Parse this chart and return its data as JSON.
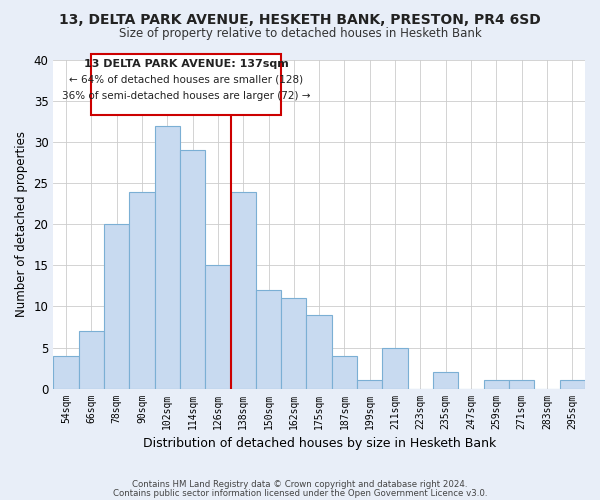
{
  "title1": "13, DELTA PARK AVENUE, HESKETH BANK, PRESTON, PR4 6SD",
  "title2": "Size of property relative to detached houses in Hesketh Bank",
  "xlabel": "Distribution of detached houses by size in Hesketh Bank",
  "ylabel": "Number of detached properties",
  "bin_labels": [
    "54sqm",
    "66sqm",
    "78sqm",
    "90sqm",
    "102sqm",
    "114sqm",
    "126sqm",
    "138sqm",
    "150sqm",
    "162sqm",
    "175sqm",
    "187sqm",
    "199sqm",
    "211sqm",
    "223sqm",
    "235sqm",
    "247sqm",
    "259sqm",
    "271sqm",
    "283sqm",
    "295sqm"
  ],
  "bar_heights": [
    4,
    7,
    20,
    24,
    32,
    29,
    15,
    24,
    12,
    11,
    9,
    4,
    1,
    5,
    0,
    2,
    0,
    1,
    1,
    0,
    1
  ],
  "bar_color": "#c8daf0",
  "bar_edge_color": "#7bafd4",
  "vline_color": "#cc0000",
  "ylim": [
    0,
    40
  ],
  "yticks": [
    0,
    5,
    10,
    15,
    20,
    25,
    30,
    35,
    40
  ],
  "annotation_line1": "13 DELTA PARK AVENUE: 137sqm",
  "annotation_line2": "← 64% of detached houses are smaller (128)",
  "annotation_line3": "36% of semi-detached houses are larger (72) →",
  "footer1": "Contains HM Land Registry data © Crown copyright and database right 2024.",
  "footer2": "Contains public sector information licensed under the Open Government Licence v3.0.",
  "background_color": "#e8eef8",
  "plot_background": "#ffffff",
  "grid_color": "#cccccc"
}
